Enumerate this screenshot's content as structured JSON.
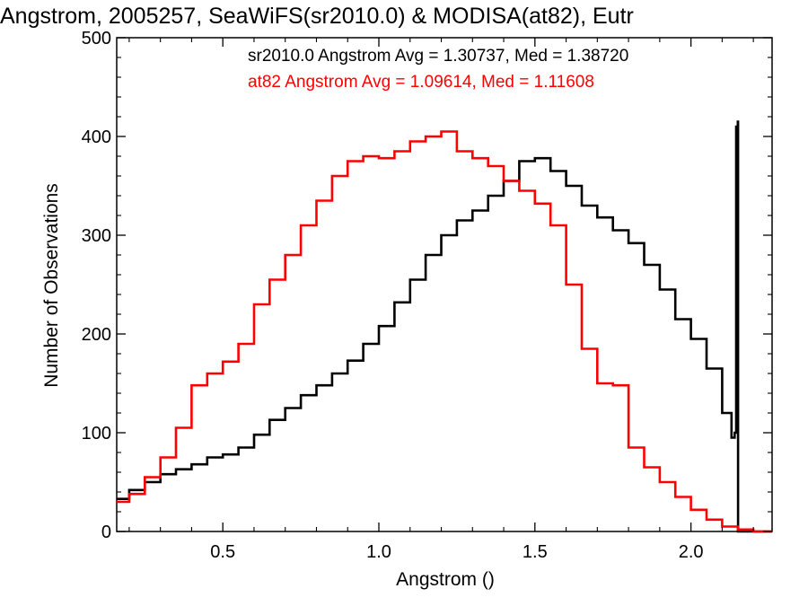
{
  "chart_data": {
    "type": "line",
    "title": "Angstrom, 2005257, SeaWiFS(sr2010.0) & MODISA(at82), Eutr",
    "xlabel": "Angstrom ()",
    "ylabel": "Number of Observations",
    "xlim": [
      0.16,
      2.26
    ],
    "ylim": [
      0,
      500
    ],
    "x_ticks": [
      0.5,
      1.0,
      1.5,
      2.0
    ],
    "x_tick_labels": [
      "0.5",
      "1.0",
      "1.5",
      "2.0"
    ],
    "y_ticks": [
      0,
      100,
      200,
      300,
      400,
      500
    ],
    "y_tick_labels": [
      "0",
      "100",
      "200",
      "300",
      "400",
      "500"
    ],
    "grid": false,
    "step": true,
    "annotations": [
      {
        "text": "sr2010.0 Angstrom Avg = 1.30737, Med = 1.38720",
        "color": "#000000"
      },
      {
        "text": "at82 Angstrom Avg = 1.09614, Med = 1.11608",
        "color": "#ff0000"
      }
    ],
    "series": [
      {
        "color": "#000000",
        "x": [
          0.16,
          0.2,
          0.25,
          0.3,
          0.35,
          0.4,
          0.45,
          0.5,
          0.55,
          0.6,
          0.65,
          0.7,
          0.75,
          0.8,
          0.85,
          0.9,
          0.95,
          1.0,
          1.05,
          1.1,
          1.15,
          1.2,
          1.25,
          1.3,
          1.35,
          1.4,
          1.45,
          1.5,
          1.55,
          1.6,
          1.65,
          1.7,
          1.75,
          1.8,
          1.85,
          1.9,
          1.95,
          2.0,
          2.05,
          2.1,
          2.13,
          2.14,
          2.145,
          2.15,
          2.151,
          2.26
        ],
        "y": [
          33,
          42,
          50,
          58,
          63,
          68,
          75,
          78,
          85,
          98,
          113,
          125,
          138,
          148,
          160,
          173,
          190,
          208,
          232,
          255,
          280,
          300,
          315,
          325,
          340,
          355,
          375,
          378,
          365,
          350,
          330,
          318,
          305,
          292,
          270,
          245,
          215,
          195,
          165,
          120,
          95,
          100,
          410,
          415,
          0,
          0
        ]
      },
      {
        "color": "#ff0000",
        "x": [
          0.16,
          0.2,
          0.25,
          0.3,
          0.35,
          0.4,
          0.45,
          0.5,
          0.55,
          0.6,
          0.65,
          0.7,
          0.75,
          0.8,
          0.85,
          0.9,
          0.95,
          1.0,
          1.05,
          1.1,
          1.15,
          1.2,
          1.25,
          1.3,
          1.35,
          1.4,
          1.45,
          1.5,
          1.55,
          1.6,
          1.65,
          1.7,
          1.75,
          1.8,
          1.85,
          1.9,
          1.95,
          2.0,
          2.05,
          2.1,
          2.15,
          2.2,
          2.26
        ],
        "y": [
          30,
          38,
          55,
          75,
          105,
          148,
          160,
          172,
          190,
          230,
          255,
          280,
          310,
          335,
          360,
          375,
          380,
          378,
          385,
          395,
          400,
          405,
          385,
          378,
          370,
          355,
          345,
          332,
          310,
          250,
          185,
          150,
          148,
          85,
          65,
          50,
          35,
          22,
          12,
          5,
          2,
          0,
          0
        ]
      }
    ]
  }
}
